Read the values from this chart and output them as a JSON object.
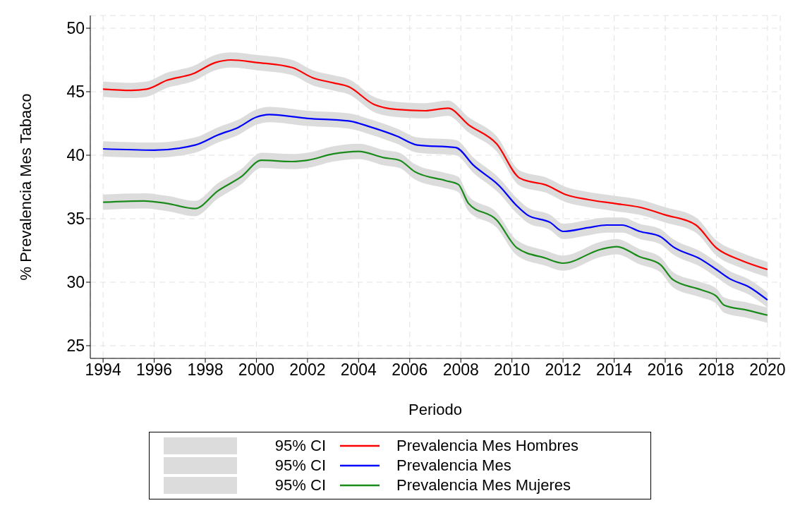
{
  "chart_data": {
    "type": "line",
    "xlabel": "Periodo",
    "ylabel": "% Prevalencia Mes Tabaco",
    "xlim": [
      1993.5,
      2020.5
    ],
    "xticks": [
      1994,
      1996,
      1998,
      2000,
      2002,
      2004,
      2006,
      2008,
      2010,
      2012,
      2014,
      2016,
      2018,
      2020
    ],
    "ylim": [
      24,
      51
    ],
    "yticks": [
      25,
      30,
      35,
      40,
      45,
      50
    ],
    "grid": true,
    "legend": "bottom",
    "marker": "none",
    "line_style": "solid",
    "annotations": [
      "95% CI",
      "95% CI",
      "95% CI"
    ],
    "series": [
      {
        "name": "Prevalencia Mes Hombres",
        "color": "#ff0000",
        "x": [
          1994,
          1995.1,
          1995.7,
          1996.5,
          1997.5,
          1998.4,
          1999,
          2000,
          2001.4,
          2002.2,
          2003,
          2003.6,
          2004.6,
          2005.5,
          2006.6,
          2007.5,
          2008.3,
          2009.4,
          2010.3,
          2011.4,
          2012.1,
          2013,
          2014,
          2015,
          2016,
          2017.2,
          2018,
          2019,
          2020
        ],
        "values": [
          45.2,
          45.1,
          45.2,
          45.9,
          46.4,
          47.3,
          47.5,
          47.3,
          46.9,
          46.1,
          45.7,
          45.4,
          44.0,
          43.6,
          43.5,
          43.7,
          42.4,
          40.9,
          38.2,
          37.6,
          36.9,
          36.5,
          36.2,
          35.9,
          35.3,
          34.5,
          32.7,
          31.7,
          31.0
        ],
        "lower": [
          44.6,
          44.5,
          44.6,
          45.3,
          45.8,
          46.7,
          46.9,
          46.7,
          46.3,
          45.5,
          45.1,
          44.8,
          43.4,
          43.0,
          42.9,
          43.1,
          41.8,
          40.3,
          37.6,
          37.0,
          36.3,
          35.9,
          35.6,
          35.3,
          34.7,
          33.9,
          32.1,
          31.1,
          30.4
        ],
        "upper": [
          45.8,
          45.7,
          45.8,
          46.5,
          47.0,
          47.9,
          48.1,
          47.9,
          47.5,
          46.7,
          46.3,
          46.0,
          44.6,
          44.2,
          44.1,
          44.3,
          43.0,
          41.5,
          38.8,
          38.2,
          37.5,
          37.1,
          36.8,
          36.5,
          35.9,
          35.1,
          33.3,
          32.3,
          31.6
        ]
      },
      {
        "name": "Prevalencia Mes",
        "color": "#0000ff",
        "x": [
          1994,
          1996,
          1997.6,
          1998.5,
          1999.3,
          2000,
          2000.5,
          2002,
          2003.6,
          2004.5,
          2005.5,
          2006.3,
          2007.8,
          2008.5,
          2009.5,
          2010.2,
          2010.6,
          2011.5,
          2012,
          2013,
          2013.7,
          2014.3,
          2015,
          2015.8,
          2016.3,
          2017.4,
          2018,
          2018.5,
          2019.3,
          2020
        ],
        "values": [
          40.5,
          40.4,
          40.8,
          41.6,
          42.2,
          43.0,
          43.2,
          42.9,
          42.7,
          42.2,
          41.5,
          40.8,
          40.6,
          39.2,
          37.6,
          36.0,
          35.3,
          34.7,
          34.0,
          34.3,
          34.5,
          34.5,
          34.0,
          33.6,
          32.8,
          31.8,
          31.0,
          30.3,
          29.6,
          28.6
        ],
        "lower": [
          39.9,
          39.8,
          40.2,
          41.0,
          41.6,
          42.4,
          42.6,
          42.3,
          42.1,
          41.6,
          40.9,
          40.2,
          40.0,
          38.6,
          37.0,
          35.4,
          34.7,
          34.1,
          33.4,
          33.7,
          33.9,
          33.9,
          33.4,
          33.0,
          32.2,
          31.2,
          30.4,
          29.7,
          29.0,
          28.0
        ],
        "upper": [
          41.1,
          41.0,
          41.4,
          42.2,
          42.8,
          43.6,
          43.8,
          43.5,
          43.3,
          42.8,
          42.1,
          41.4,
          41.2,
          39.8,
          38.2,
          36.6,
          35.9,
          35.3,
          34.6,
          34.9,
          35.1,
          35.1,
          34.6,
          34.2,
          33.4,
          32.4,
          31.6,
          30.9,
          30.2,
          29.2
        ]
      },
      {
        "name": "Prevalencia Mes Mujeres",
        "color": "#1a8a1a",
        "x": [
          1994,
          1995.6,
          1996.5,
          1997.6,
          1998.5,
          1999.4,
          2000.2,
          2001.4,
          2002,
          2003,
          2004,
          2005,
          2005.6,
          2006.2,
          2007.4,
          2007.9,
          2008.3,
          2009.4,
          2010.2,
          2011.3,
          2012,
          2013.5,
          2014.1,
          2015,
          2015.8,
          2016.3,
          2017.4,
          2018,
          2018.3,
          2019.2,
          2020
        ],
        "values": [
          36.3,
          36.4,
          36.2,
          35.8,
          37.2,
          38.3,
          39.6,
          39.5,
          39.6,
          40.1,
          40.3,
          39.8,
          39.6,
          38.7,
          38.0,
          37.7,
          36.2,
          34.9,
          32.7,
          31.9,
          31.5,
          32.6,
          32.8,
          32.0,
          31.4,
          30.2,
          29.4,
          28.9,
          28.2,
          27.8,
          27.4
        ],
        "lower": [
          35.7,
          35.8,
          35.6,
          35.2,
          36.6,
          37.7,
          39.0,
          38.9,
          39.0,
          39.5,
          39.7,
          39.2,
          39.0,
          38.1,
          37.4,
          37.1,
          35.6,
          34.3,
          32.1,
          31.3,
          30.9,
          32.0,
          32.2,
          31.4,
          30.8,
          29.6,
          28.8,
          28.3,
          27.6,
          27.2,
          26.8
        ],
        "upper": [
          36.9,
          37.0,
          36.8,
          36.4,
          37.8,
          38.9,
          40.2,
          40.1,
          40.2,
          40.7,
          40.9,
          40.4,
          40.2,
          39.3,
          38.6,
          38.3,
          36.8,
          35.5,
          33.3,
          32.5,
          32.1,
          33.2,
          33.4,
          32.6,
          32.0,
          30.8,
          30.0,
          29.5,
          28.8,
          28.4,
          28.0
        ]
      }
    ]
  }
}
